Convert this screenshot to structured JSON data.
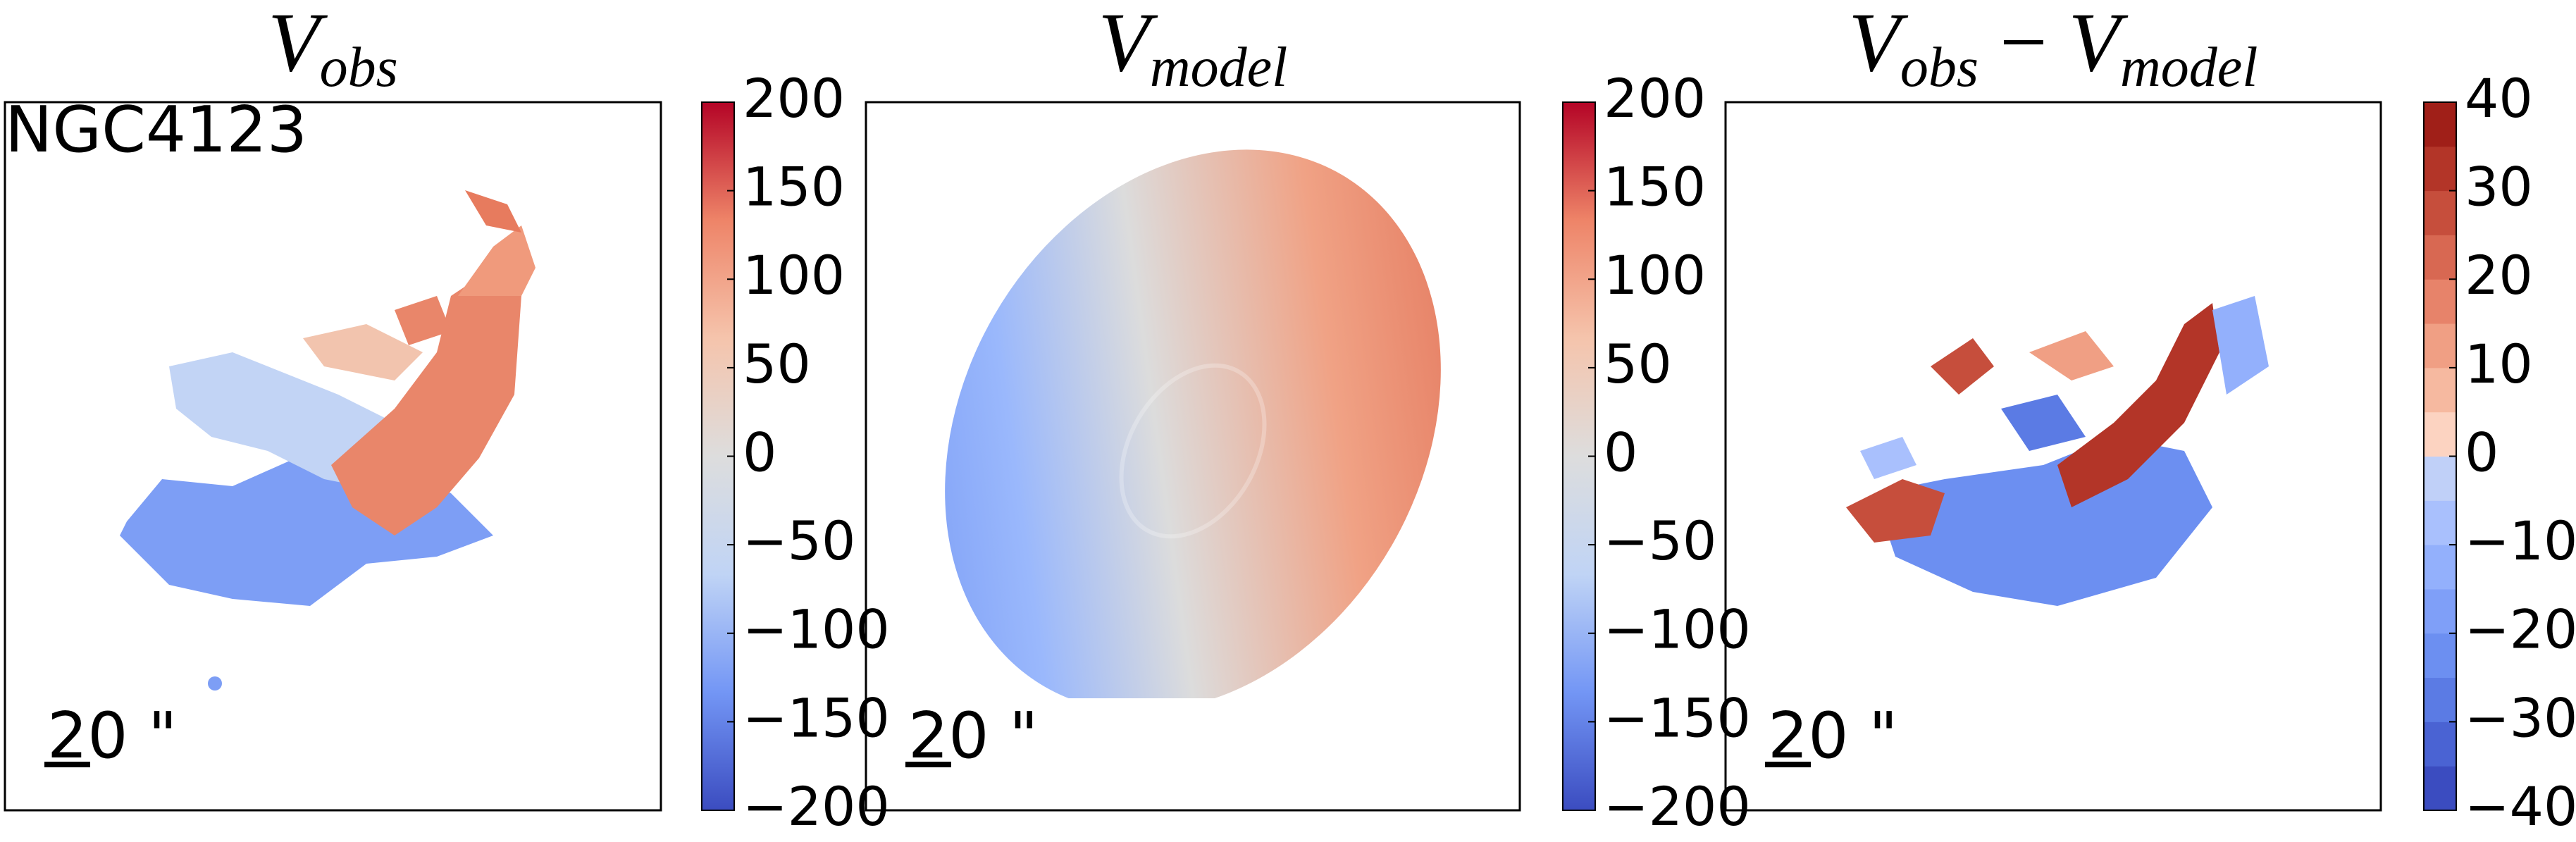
{
  "chart_data": [
    {
      "type": "heatmap",
      "title": [
        {
          "text": "V"
        },
        {
          "text": "obs",
          "sub": true
        }
      ],
      "annotation": "NGC4123",
      "scale_label": "20 \"",
      "colormap": [
        "#3b4cc0",
        "#7396f5",
        "#c0d4f5",
        "#dddddd",
        "#f5c4ac",
        "#ee8468",
        "#b40426"
      ],
      "ylim": [
        -200,
        200
      ],
      "yticks": [
        {
          "value": -200,
          "label": "−200"
        },
        {
          "value": -150,
          "label": "−150"
        },
        {
          "value": -100,
          "label": "−100"
        },
        {
          "value": -50,
          "label": "−50"
        },
        0,
        50,
        100,
        150,
        200
      ]
    },
    {
      "type": "heatmap",
      "title": [
        {
          "text": "V"
        },
        {
          "text": "model",
          "sub": true
        }
      ],
      "scale_label": "20 \"",
      "colormap": [
        "#3b4cc0",
        "#7396f5",
        "#c0d4f5",
        "#dddddd",
        "#f5c4ac",
        "#ee8468",
        "#b40426"
      ],
      "ylim": [
        -200,
        200
      ],
      "yticks": [
        {
          "value": -200,
          "label": "−200"
        },
        {
          "value": -150,
          "label": "−150"
        },
        {
          "value": -100,
          "label": "−100"
        },
        {
          "value": -50,
          "label": "−50"
        },
        0,
        50,
        100,
        150,
        200
      ]
    },
    {
      "type": "heatmap",
      "title": [
        {
          "text": "V"
        },
        {
          "text": "obs",
          "sub": true
        },
        {
          "text": " − "
        },
        {
          "text": "V"
        },
        {
          "text": "model",
          "sub": true
        }
      ],
      "scale_label": "20 \"",
      "colors": [
        "#3b4cc0",
        "#4a63d3",
        "#5b7be4",
        "#6c8ff1",
        "#7f9ff8",
        "#93b0fc",
        "#a9c0fd",
        "#c0d0f8",
        "#fcd3c1",
        "#f6b9a0",
        "#f09f84",
        "#e7836a",
        "#d86852",
        "#c64e3c",
        "#b33528",
        "#a01f18"
      ],
      "ylim": [
        -40,
        40
      ],
      "yticks": [
        {
          "value": -40,
          "label": "−40"
        },
        {
          "value": -30,
          "label": "−30"
        },
        {
          "value": -20,
          "label": "−20"
        },
        {
          "value": -10,
          "label": "−10"
        },
        0,
        10,
        20,
        30,
        40
      ]
    }
  ]
}
